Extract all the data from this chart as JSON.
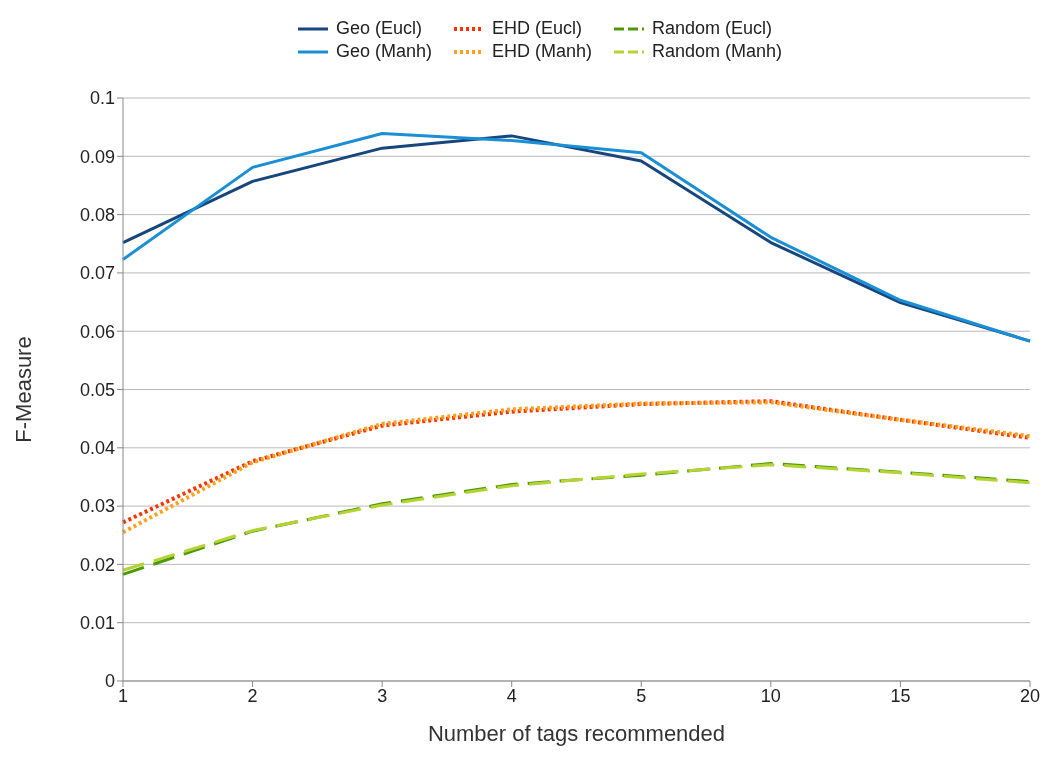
{
  "chart_data": {
    "type": "line",
    "xlabel": "Number of tags recommended",
    "ylabel": "F-Measure",
    "categories": [
      "1",
      "2",
      "3",
      "4",
      "5",
      "10",
      "15",
      "20"
    ],
    "ylim": [
      0,
      0.1
    ],
    "yticks": [
      0,
      0.01,
      0.02,
      0.03,
      0.04,
      0.05,
      0.06,
      0.07,
      0.08,
      0.09,
      0.1
    ],
    "grid": "y",
    "legend": "top",
    "marker": "none",
    "series": [
      {
        "name": "Geo (Eucl)",
        "color": "#17467f",
        "line_style": "solid",
        "values": [
          0.0752,
          0.0857,
          0.0914,
          0.0935,
          0.0892,
          0.0752,
          0.0649,
          0.0583
        ]
      },
      {
        "name": "Geo (Manh)",
        "color": "#1a8fd6",
        "line_style": "solid",
        "values": [
          0.0723,
          0.0881,
          0.0939,
          0.0927,
          0.0906,
          0.0761,
          0.0653,
          0.0583
        ]
      },
      {
        "name": "EHD (Eucl)",
        "color": "#ff3300",
        "line_style": "dotted",
        "values": [
          0.0272,
          0.0377,
          0.0438,
          0.0462,
          0.0475,
          0.048,
          0.0448,
          0.0417
        ]
      },
      {
        "name": "EHD (Manh)",
        "color": "#ffa020",
        "line_style": "dotted",
        "values": [
          0.0255,
          0.0375,
          0.0441,
          0.0466,
          0.0476,
          0.0478,
          0.0448,
          0.042
        ]
      },
      {
        "name": "Random (Eucl)",
        "color": "#4e9a06",
        "line_style": "dashed",
        "values": [
          0.0183,
          0.0257,
          0.0304,
          0.0337,
          0.0353,
          0.0373,
          0.0358,
          0.0342
        ]
      },
      {
        "name": "Random (Manh)",
        "color": "#b5d334",
        "line_style": "dashed",
        "values": [
          0.019,
          0.0258,
          0.0302,
          0.0335,
          0.0355,
          0.0371,
          0.0357,
          0.034
        ]
      }
    ]
  }
}
